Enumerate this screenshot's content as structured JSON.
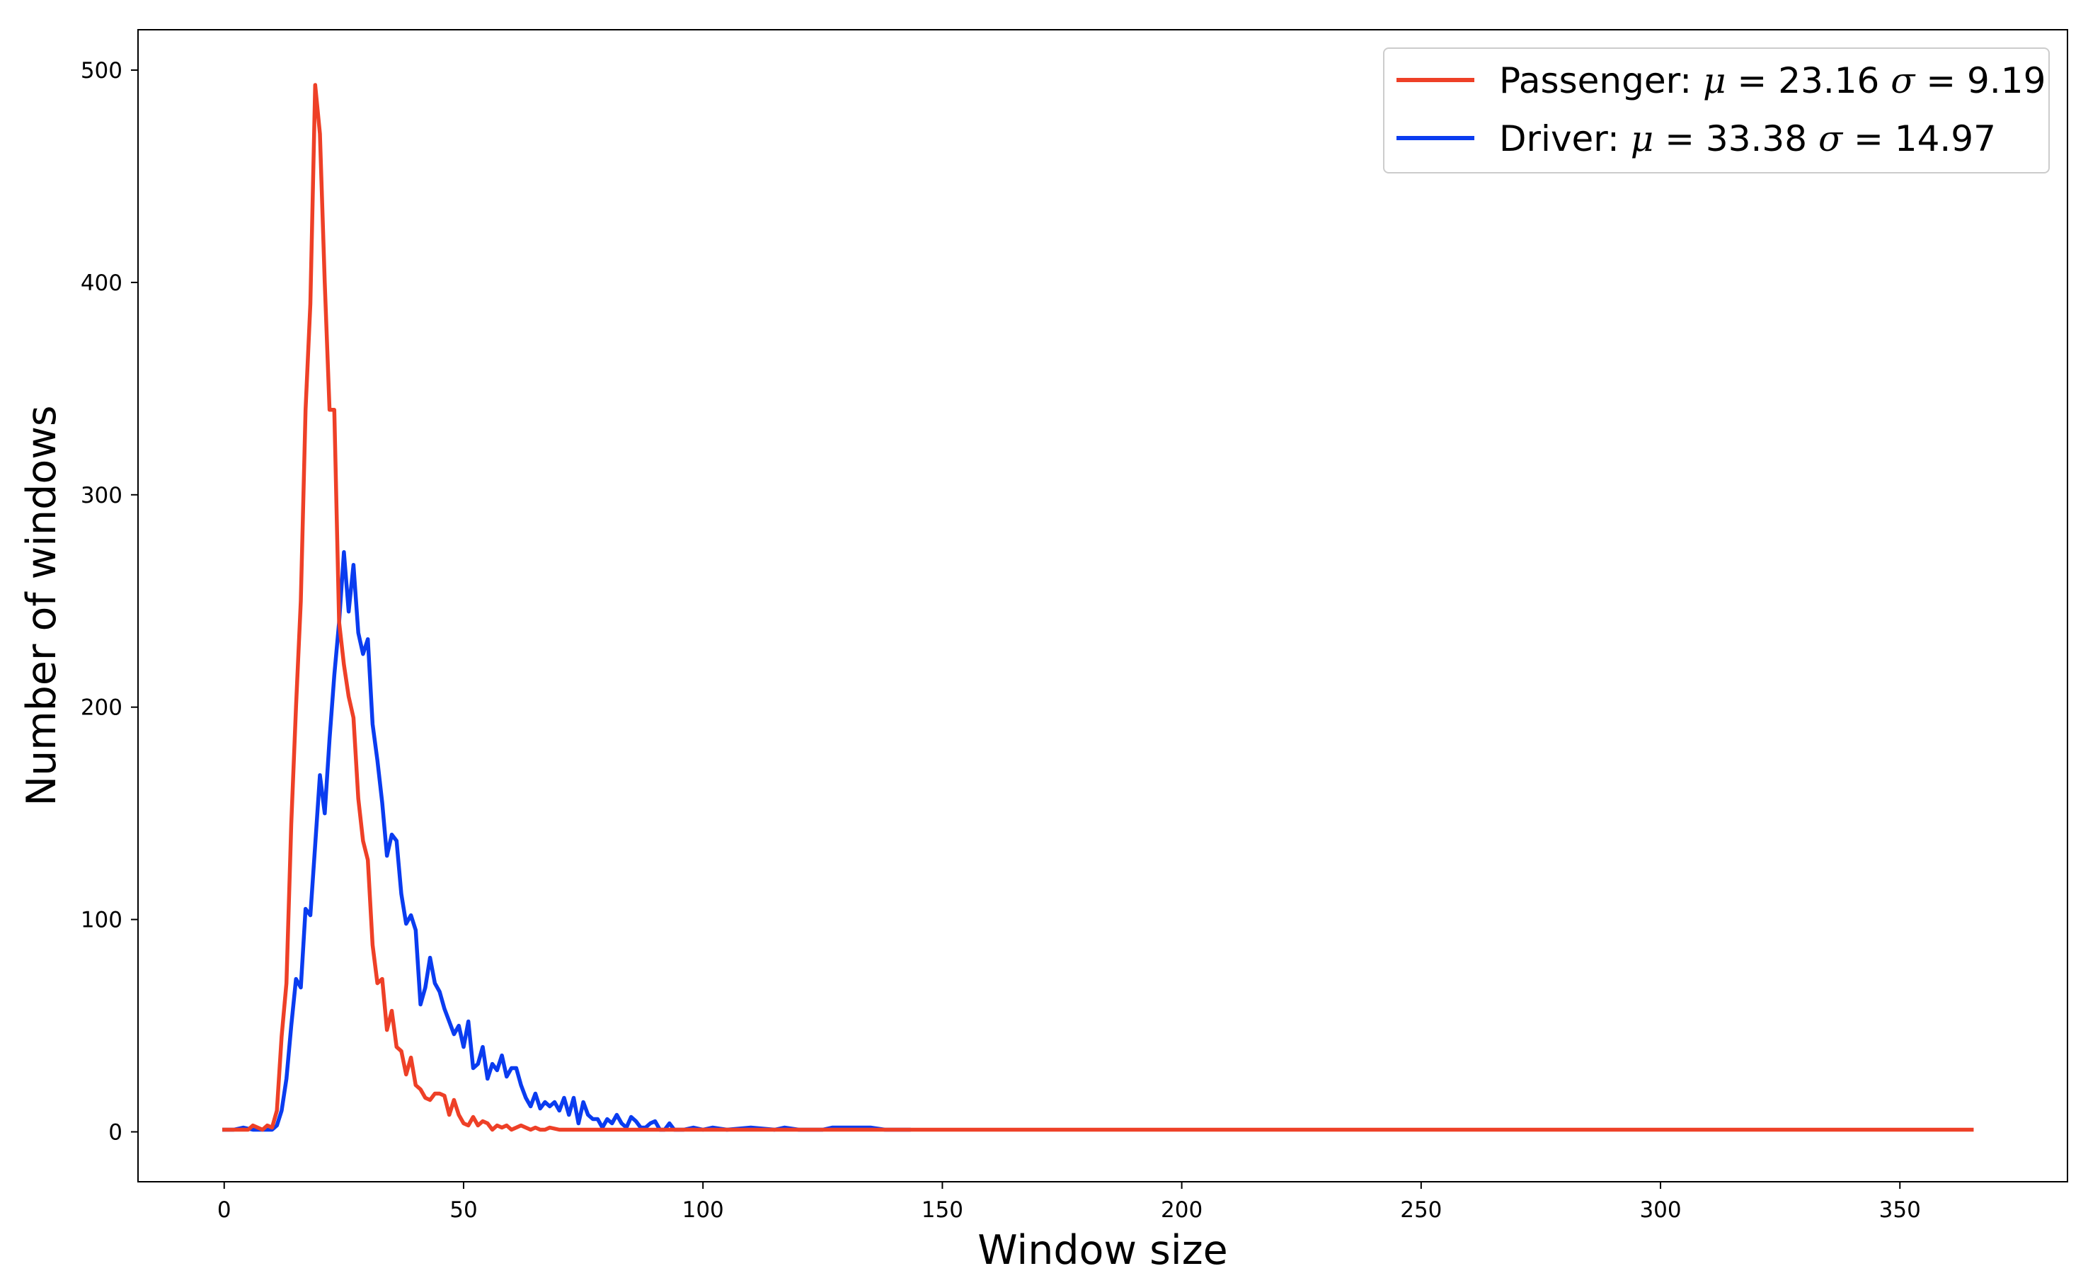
{
  "chart_data": {
    "type": "line",
    "title": "",
    "xlabel": "Window size",
    "ylabel": "Number of windows",
    "xlim": [
      -18,
      385
    ],
    "ylim": [
      -23.5,
      519
    ],
    "x_ticks": [
      0,
      50,
      100,
      150,
      200,
      250,
      300,
      350
    ],
    "y_ticks": [
      0,
      100,
      200,
      300,
      400,
      500
    ],
    "grid": false,
    "legend_position": "top-right",
    "series": [
      {
        "name": "Driver",
        "legend_prefix": "Driver: ",
        "legend_mu_value": "33.38",
        "legend_sigma_value": "14.97",
        "color": "#0a3cf0",
        "points": [
          [
            0,
            1
          ],
          [
            2,
            1
          ],
          [
            4,
            2
          ],
          [
            6,
            1
          ],
          [
            8,
            1
          ],
          [
            10,
            1
          ],
          [
            11,
            3
          ],
          [
            12,
            10
          ],
          [
            13,
            25
          ],
          [
            14,
            50
          ],
          [
            15,
            72
          ],
          [
            16,
            68
          ],
          [
            17,
            105
          ],
          [
            18,
            102
          ],
          [
            19,
            135
          ],
          [
            20,
            168
          ],
          [
            21,
            150
          ],
          [
            22,
            185
          ],
          [
            23,
            215
          ],
          [
            24,
            240
          ],
          [
            25,
            273
          ],
          [
            26,
            245
          ],
          [
            27,
            267
          ],
          [
            28,
            235
          ],
          [
            29,
            225
          ],
          [
            30,
            232
          ],
          [
            31,
            192
          ],
          [
            32,
            175
          ],
          [
            33,
            155
          ],
          [
            34,
            130
          ],
          [
            35,
            140
          ],
          [
            36,
            137
          ],
          [
            37,
            112
          ],
          [
            38,
            98
          ],
          [
            39,
            102
          ],
          [
            40,
            95
          ],
          [
            41,
            60
          ],
          [
            42,
            68
          ],
          [
            43,
            82
          ],
          [
            44,
            70
          ],
          [
            45,
            66
          ],
          [
            46,
            58
          ],
          [
            47,
            52
          ],
          [
            48,
            46
          ],
          [
            49,
            50
          ],
          [
            50,
            40
          ],
          [
            51,
            52
          ],
          [
            52,
            30
          ],
          [
            53,
            32
          ],
          [
            54,
            40
          ],
          [
            55,
            25
          ],
          [
            56,
            32
          ],
          [
            57,
            29
          ],
          [
            58,
            36
          ],
          [
            59,
            26
          ],
          [
            60,
            30
          ],
          [
            61,
            30
          ],
          [
            62,
            22
          ],
          [
            63,
            16
          ],
          [
            64,
            12
          ],
          [
            65,
            18
          ],
          [
            66,
            11
          ],
          [
            67,
            14
          ],
          [
            68,
            12
          ],
          [
            69,
            14
          ],
          [
            70,
            10
          ],
          [
            71,
            16
          ],
          [
            72,
            8
          ],
          [
            73,
            16
          ],
          [
            74,
            4
          ],
          [
            75,
            14
          ],
          [
            76,
            8
          ],
          [
            77,
            6
          ],
          [
            78,
            6
          ],
          [
            79,
            2
          ],
          [
            80,
            6
          ],
          [
            81,
            4
          ],
          [
            82,
            8
          ],
          [
            83,
            4
          ],
          [
            84,
            2
          ],
          [
            85,
            7
          ],
          [
            86,
            5
          ],
          [
            87,
            2
          ],
          [
            88,
            2
          ],
          [
            89,
            4
          ],
          [
            90,
            5
          ],
          [
            91,
            1
          ],
          [
            92,
            1
          ],
          [
            93,
            4
          ],
          [
            94,
            1
          ],
          [
            96,
            1
          ],
          [
            98,
            2
          ],
          [
            100,
            1
          ],
          [
            102,
            2
          ],
          [
            105,
            1
          ],
          [
            110,
            2
          ],
          [
            115,
            1
          ],
          [
            117,
            2
          ],
          [
            120,
            1
          ],
          [
            125,
            1
          ],
          [
            127,
            2
          ],
          [
            130,
            2
          ],
          [
            135,
            2
          ],
          [
            138,
            1
          ],
          [
            143,
            1
          ]
        ]
      },
      {
        "name": "Passenger",
        "legend_prefix": "Passenger: ",
        "legend_mu_value": "23.16",
        "legend_sigma_value": "9.19",
        "color": "#ee4027",
        "points": [
          [
            0,
            1
          ],
          [
            3,
            1
          ],
          [
            5,
            1
          ],
          [
            6,
            3
          ],
          [
            7,
            2
          ],
          [
            8,
            1
          ],
          [
            9,
            3
          ],
          [
            10,
            2
          ],
          [
            11,
            10
          ],
          [
            12,
            45
          ],
          [
            13,
            70
          ],
          [
            14,
            145
          ],
          [
            15,
            200
          ],
          [
            16,
            250
          ],
          [
            17,
            340
          ],
          [
            18,
            390
          ],
          [
            19,
            493
          ],
          [
            20,
            470
          ],
          [
            21,
            400
          ],
          [
            22,
            340
          ],
          [
            23,
            340
          ],
          [
            24,
            240
          ],
          [
            25,
            220
          ],
          [
            26,
            205
          ],
          [
            27,
            195
          ],
          [
            28,
            157
          ],
          [
            29,
            137
          ],
          [
            30,
            128
          ],
          [
            31,
            88
          ],
          [
            32,
            70
          ],
          [
            33,
            72
          ],
          [
            34,
            48
          ],
          [
            35,
            57
          ],
          [
            36,
            40
          ],
          [
            37,
            38
          ],
          [
            38,
            27
          ],
          [
            39,
            35
          ],
          [
            40,
            22
          ],
          [
            41,
            20
          ],
          [
            42,
            16
          ],
          [
            43,
            15
          ],
          [
            44,
            18
          ],
          [
            45,
            18
          ],
          [
            46,
            17
          ],
          [
            47,
            8
          ],
          [
            48,
            15
          ],
          [
            49,
            8
          ],
          [
            50,
            4
          ],
          [
            51,
            3
          ],
          [
            52,
            7
          ],
          [
            53,
            3
          ],
          [
            54,
            5
          ],
          [
            55,
            4
          ],
          [
            56,
            1
          ],
          [
            57,
            3
          ],
          [
            58,
            2
          ],
          [
            59,
            3
          ],
          [
            60,
            1
          ],
          [
            61,
            2
          ],
          [
            62,
            3
          ],
          [
            63,
            2
          ],
          [
            64,
            1
          ],
          [
            65,
            2
          ],
          [
            66,
            1
          ],
          [
            67,
            1
          ],
          [
            68,
            2
          ],
          [
            70,
            1
          ],
          [
            75,
            1
          ],
          [
            80,
            1
          ],
          [
            90,
            1
          ],
          [
            100,
            1
          ],
          [
            150,
            1
          ],
          [
            200,
            1
          ],
          [
            250,
            1
          ],
          [
            300,
            1
          ],
          [
            365,
            1
          ]
        ]
      }
    ],
    "legend_order": [
      "Passenger",
      "Driver"
    ]
  }
}
